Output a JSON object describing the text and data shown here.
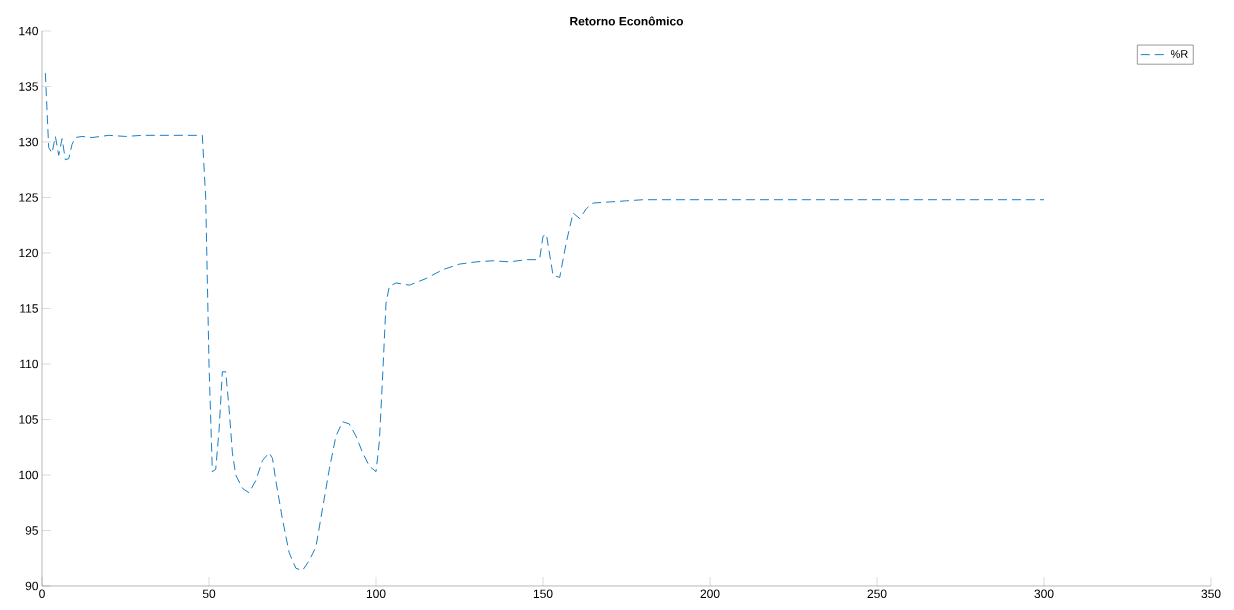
{
  "chart_data": {
    "type": "line",
    "title": "Retorno Econômico",
    "x": [
      1,
      2,
      3,
      4,
      5,
      6,
      7,
      8,
      9,
      10,
      12,
      15,
      20,
      25,
      30,
      40,
      48,
      49,
      50,
      51,
      52,
      53,
      54,
      55,
      56,
      57,
      58,
      60,
      62,
      64,
      66,
      68,
      69,
      70,
      72,
      74,
      76,
      78,
      80,
      82,
      84,
      86,
      88,
      90,
      92,
      94,
      96,
      98,
      100,
      101,
      102,
      103,
      104,
      106,
      110,
      115,
      120,
      125,
      130,
      135,
      140,
      145,
      148,
      149,
      150,
      151,
      153,
      155,
      157,
      159,
      161,
      163,
      165,
      170,
      175,
      180,
      200,
      300
    ],
    "series": [
      {
        "name": "%R",
        "color": "#0072bd",
        "values": [
          136.2,
          129.5,
          129.0,
          130.5,
          128.8,
          130.3,
          128.4,
          128.5,
          129.8,
          130.4,
          130.5,
          130.4,
          130.6,
          130.5,
          130.6,
          130.6,
          130.6,
          125,
          110,
          100.3,
          100.5,
          104,
          109.3,
          109.3,
          106,
          102,
          100,
          98.8,
          98.4,
          99.5,
          101.3,
          102,
          101.5,
          99.5,
          96,
          93,
          91.6,
          91.4,
          92.3,
          93.5,
          97,
          100.5,
          103.5,
          104.8,
          104.6,
          103.5,
          102,
          100.8,
          100.3,
          103,
          109,
          115.5,
          117,
          117.3,
          117.1,
          117.7,
          118.5,
          119,
          119.2,
          119.3,
          119.2,
          119.4,
          119.4,
          119.5,
          121.5,
          121.7,
          118,
          117.8,
          121,
          123.6,
          123.1,
          124,
          124.5,
          124.6,
          124.7,
          124.8,
          124.8,
          124.8
        ]
      }
    ],
    "xlim": [
      0,
      350
    ],
    "xticks": [
      0,
      50,
      100,
      150,
      200,
      250,
      300,
      350
    ],
    "ylim": [
      90,
      140
    ],
    "yticks": [
      90,
      95,
      100,
      105,
      110,
      115,
      120,
      125,
      130,
      135,
      140
    ],
    "legend": "top right",
    "line_style": "dashed",
    "marker": "none",
    "grid": false
  }
}
